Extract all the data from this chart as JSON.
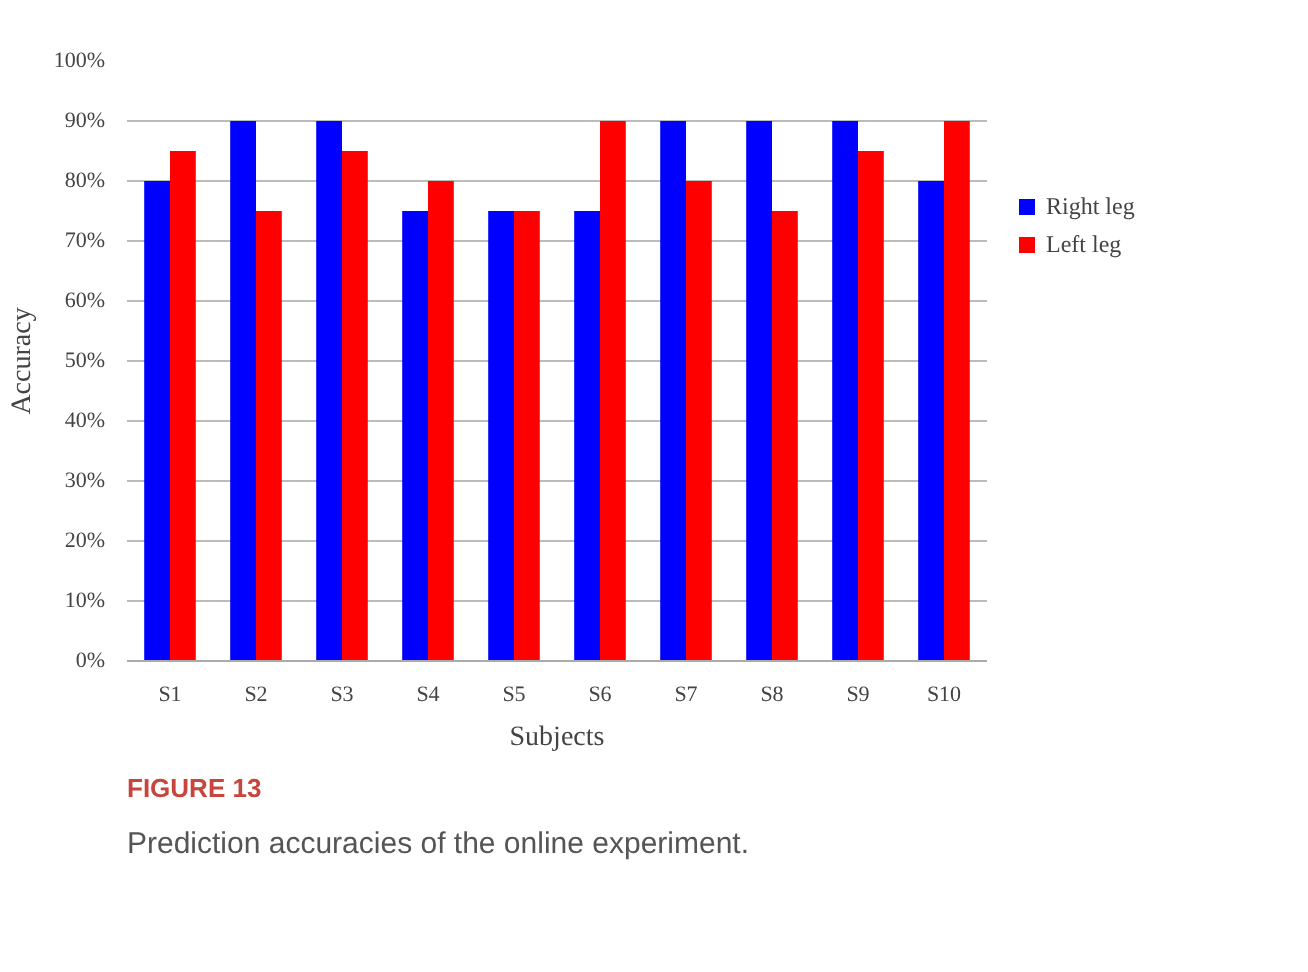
{
  "chart_data": {
    "type": "bar",
    "xlabel": "Subjects",
    "ylabel": "Accuracy",
    "categories": [
      "S1",
      "S2",
      "S3",
      "S4",
      "S5",
      "S6",
      "S7",
      "S8",
      "S9",
      "S10"
    ],
    "series": [
      {
        "name": "Right leg",
        "color": "#0000ff",
        "values": [
          80,
          90,
          90,
          75,
          75,
          75,
          90,
          90,
          90,
          80
        ]
      },
      {
        "name": "Left leg",
        "color": "#ff0000",
        "values": [
          85,
          75,
          85,
          80,
          75,
          90,
          80,
          75,
          85,
          90
        ]
      }
    ],
    "ylim": [
      0,
      100
    ],
    "yticks": [
      {
        "value": 0,
        "label": "0%"
      },
      {
        "value": 10,
        "label": "10%"
      },
      {
        "value": 20,
        "label": "20%"
      },
      {
        "value": 30,
        "label": "30%"
      },
      {
        "value": 40,
        "label": "40%"
      },
      {
        "value": 50,
        "label": "50%"
      },
      {
        "value": 60,
        "label": "60%"
      },
      {
        "value": 70,
        "label": "70%"
      },
      {
        "value": 80,
        "label": "80%"
      },
      {
        "value": 90,
        "label": "90%"
      },
      {
        "value": 100,
        "label": "100%"
      }
    ],
    "grid": "y",
    "legend": "right",
    "annotations": [
      "FIGURE 13",
      "Prediction accuracies of the online experiment."
    ]
  }
}
